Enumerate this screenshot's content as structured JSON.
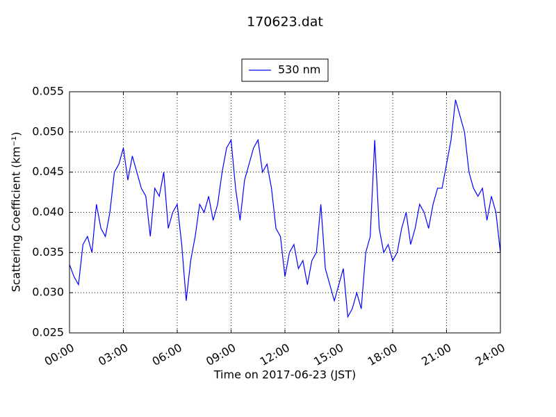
{
  "chart_data": {
    "type": "line",
    "title": "170623.dat",
    "xlabel": "Time on 2017-06-23 (JST)",
    "ylabel": "Scattering Coefficient (km⁻¹)",
    "x": [
      0,
      0.25,
      0.5,
      0.75,
      1,
      1.25,
      1.5,
      1.75,
      2,
      2.25,
      2.5,
      2.75,
      3,
      3.25,
      3.5,
      3.75,
      4,
      4.25,
      4.5,
      4.75,
      5,
      5.25,
      5.5,
      5.75,
      6,
      6.25,
      6.5,
      6.75,
      7,
      7.25,
      7.5,
      7.75,
      8,
      8.25,
      8.5,
      8.75,
      9,
      9.25,
      9.5,
      9.75,
      10,
      10.25,
      10.5,
      10.75,
      11,
      11.25,
      11.5,
      11.75,
      12,
      12.25,
      12.5,
      12.75,
      13,
      13.25,
      13.5,
      13.75,
      14,
      14.25,
      14.5,
      14.75,
      15,
      15.25,
      15.5,
      15.75,
      16,
      16.25,
      16.5,
      16.75,
      17,
      17.25,
      17.5,
      17.75,
      18,
      18.25,
      18.5,
      18.75,
      19,
      19.25,
      19.5,
      19.75,
      20,
      20.25,
      20.5,
      20.75,
      21,
      21.25,
      21.5,
      21.75,
      22,
      22.25,
      22.5,
      22.75,
      23,
      23.25,
      23.5,
      23.75,
      24
    ],
    "series": [
      {
        "name": "530 nm",
        "color": "#0000ff",
        "values": [
          0.0335,
          0.032,
          0.031,
          0.036,
          0.037,
          0.035,
          0.041,
          0.038,
          0.037,
          0.04,
          0.045,
          0.046,
          0.048,
          0.044,
          0.047,
          0.045,
          0.043,
          0.042,
          0.037,
          0.043,
          0.042,
          0.045,
          0.038,
          0.04,
          0.041,
          0.036,
          0.029,
          0.034,
          0.037,
          0.041,
          0.04,
          0.042,
          0.039,
          0.041,
          0.045,
          0.048,
          0.049,
          0.043,
          0.039,
          0.044,
          0.046,
          0.048,
          0.049,
          0.045,
          0.046,
          0.043,
          0.038,
          0.037,
          0.032,
          0.035,
          0.036,
          0.033,
          0.034,
          0.031,
          0.034,
          0.035,
          0.041,
          0.033,
          0.031,
          0.029,
          0.031,
          0.033,
          0.027,
          0.028,
          0.03,
          0.028,
          0.035,
          0.037,
          0.049,
          0.038,
          0.035,
          0.036,
          0.034,
          0.035,
          0.038,
          0.04,
          0.036,
          0.038,
          0.041,
          0.04,
          0.038,
          0.041,
          0.043,
          0.043,
          0.046,
          0.049,
          0.054,
          0.052,
          0.05,
          0.045,
          0.043,
          0.042,
          0.043,
          0.039,
          0.042,
          0.04,
          0.035
        ]
      }
    ],
    "xlim": [
      0,
      24
    ],
    "xticks": [
      {
        "value": 0,
        "label": "00:00"
      },
      {
        "value": 3,
        "label": "03:00"
      },
      {
        "value": 6,
        "label": "06:00"
      },
      {
        "value": 9,
        "label": "09:00"
      },
      {
        "value": 12,
        "label": "12:00"
      },
      {
        "value": 15,
        "label": "15:00"
      },
      {
        "value": 18,
        "label": "18:00"
      },
      {
        "value": 21,
        "label": "21:00"
      },
      {
        "value": 24,
        "label": "24:00"
      }
    ],
    "ylim": [
      0.025,
      0.055
    ],
    "yticks": [
      {
        "value": 0.025,
        "label": "0.025"
      },
      {
        "value": 0.03,
        "label": "0.030"
      },
      {
        "value": 0.035,
        "label": "0.035"
      },
      {
        "value": 0.04,
        "label": "0.040"
      },
      {
        "value": 0.045,
        "label": "0.045"
      },
      {
        "value": 0.05,
        "label": "0.050"
      },
      {
        "value": 0.055,
        "label": "0.055"
      }
    ],
    "grid": true,
    "legend": "upper center"
  }
}
